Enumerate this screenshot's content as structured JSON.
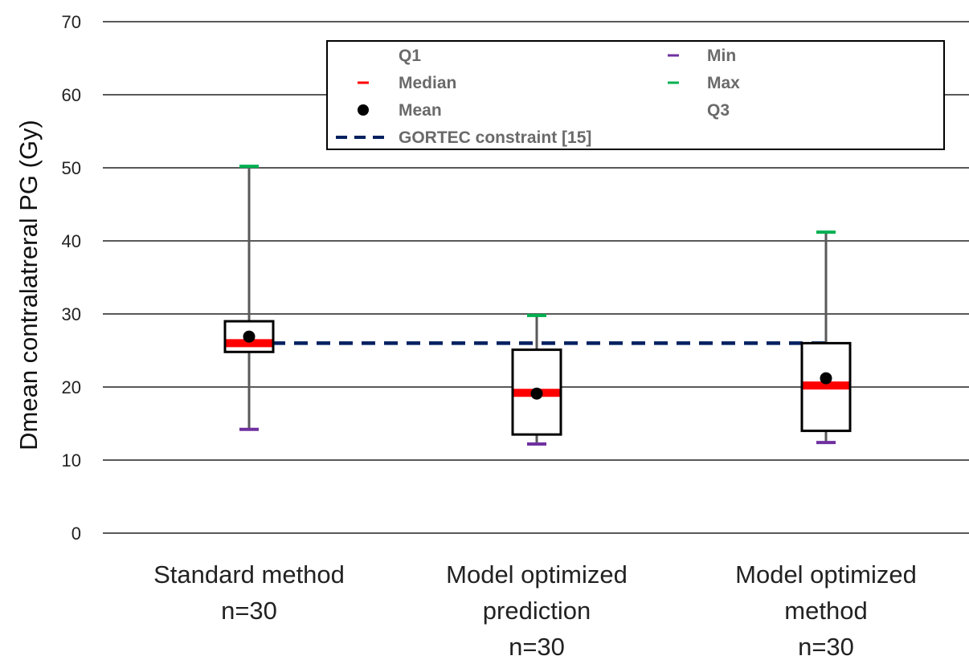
{
  "chart_data": {
    "type": "boxplot",
    "title": "",
    "ylabel": "Dmean contralatreral PG (Gy)",
    "xlabel": "",
    "ylim": [
      0,
      70
    ],
    "yticks": [
      0,
      10,
      20,
      30,
      40,
      50,
      60,
      70
    ],
    "grid": true,
    "legend_position": "top",
    "categories": [
      [
        "Standard method",
        "n=30"
      ],
      [
        "Model optimized",
        "prediction",
        "n=30"
      ],
      [
        "Model optimized",
        "method",
        "n=30"
      ]
    ],
    "boxes": [
      {
        "min": 14.2,
        "q1": 24.8,
        "median": 26.0,
        "mean": 26.9,
        "q3": 29.0,
        "max": 50.2
      },
      {
        "min": 12.2,
        "q1": 13.5,
        "median": 19.2,
        "mean": 19.1,
        "q3": 25.1,
        "max": 29.8
      },
      {
        "min": 12.4,
        "q1": 14.0,
        "median": 20.2,
        "mean": 21.2,
        "q3": 26.0,
        "max": 41.2
      }
    ],
    "reference_line": {
      "label": "GORTEC constraint [15]",
      "value": 26.0
    },
    "legend": [
      {
        "label": "Q1",
        "marker": "none"
      },
      {
        "label": "Min",
        "marker": "min"
      },
      {
        "label": "Median",
        "marker": "median"
      },
      {
        "label": "Max",
        "marker": "max"
      },
      {
        "label": "Mean",
        "marker": "mean"
      },
      {
        "label": "Q3",
        "marker": "none"
      },
      {
        "label": "GORTEC constraint [15]",
        "marker": "dash"
      }
    ],
    "colors": {
      "median": "#ff0000",
      "min": "#7030a0",
      "max": "#00b050",
      "mean": "#000000",
      "reference": "#002060",
      "grid": "#222222",
      "whisker": "#595959",
      "box": "#000000"
    }
  }
}
